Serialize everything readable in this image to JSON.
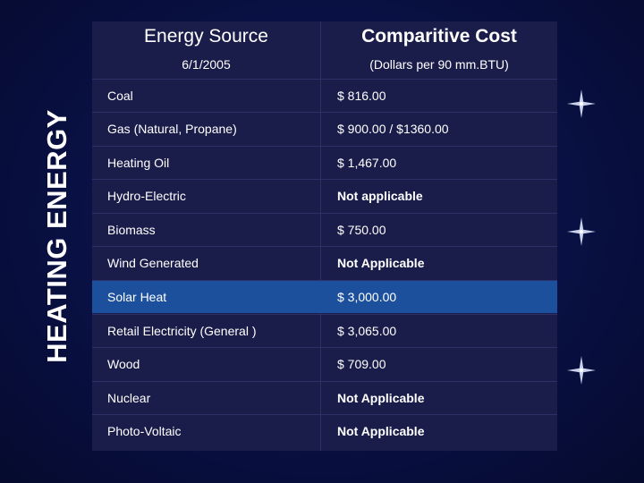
{
  "side_title": "HEATING ENERGY",
  "header": {
    "col1_title": "Energy Source",
    "col1_sub": "6/1/2005",
    "col2_title": "Comparitive Cost",
    "col2_sub": "(Dollars per 90 mm.BTU)"
  },
  "rows": [
    {
      "source": "Coal",
      "cost": "$ 816.00"
    },
    {
      "source": "Gas (Natural, Propane)",
      "cost": "$ 900.00 / $1360.00"
    },
    {
      "source": "Heating Oil",
      "cost": "$ 1,467.00"
    },
    {
      "source": "Hydro-Electric",
      "cost": "Not applicable"
    },
    {
      "source": "Biomass",
      "cost": "$ 750.00"
    },
    {
      "source": "Wind Generated",
      "cost": "Not Applicable"
    },
    {
      "source": "Solar Heat",
      "cost": "$ 3,000.00"
    },
    {
      "source": "Retail Electricity (General )",
      "cost": "$ 3,065.00"
    },
    {
      "source": "Wood",
      "cost": "$ 709.00"
    },
    {
      "source": "Nuclear",
      "cost": "Not Applicable"
    },
    {
      "source": "Photo-Voltaic",
      "cost": "Not Applicable"
    }
  ],
  "colors": {
    "background": "#0a1248",
    "table": "#1a1d4a",
    "highlight_row": "#1c4f9c",
    "text": "#ffffff"
  },
  "icons": [
    "sparkle-icon",
    "sparkle-icon",
    "sparkle-icon"
  ]
}
